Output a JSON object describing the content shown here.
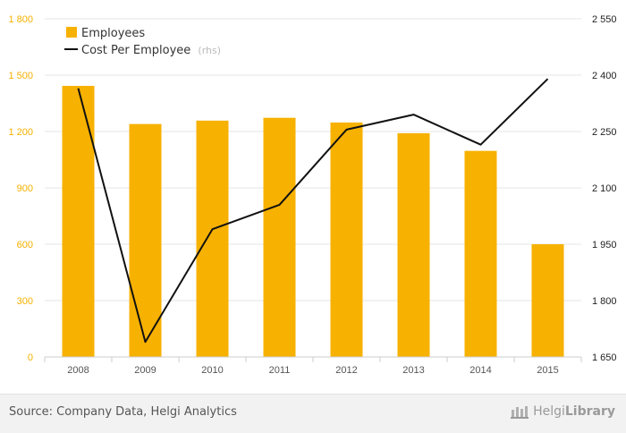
{
  "chart_data": {
    "type": "bar",
    "categories": [
      "2008",
      "2009",
      "2010",
      "2011",
      "2012",
      "2013",
      "2014",
      "2015"
    ],
    "series": [
      {
        "name": "Employees",
        "type": "bar",
        "axis": "left",
        "color": "#f7b100",
        "values": [
          1443,
          1240,
          1258,
          1273,
          1248,
          1191,
          1097,
          600
        ]
      },
      {
        "name": "Cost Per Employee",
        "legend_suffix": "(rhs)",
        "type": "line",
        "axis": "right",
        "color": "#111111",
        "values": [
          2365,
          1690,
          1990,
          2055,
          2255,
          2295,
          2215,
          2390
        ]
      }
    ],
    "y_left": {
      "min": 0,
      "max": 1800,
      "ticks": [
        "0",
        "300",
        "600",
        "900",
        "1 200",
        "1 500",
        "1 800"
      ],
      "tick_values": [
        0,
        300,
        600,
        900,
        1200,
        1500,
        1800
      ],
      "color": "#f7b100"
    },
    "y_right": {
      "min": 1650,
      "max": 2550,
      "ticks": [
        "1 650",
        "1 800",
        "1 950",
        "2 100",
        "2 250",
        "2 400",
        "2 550"
      ],
      "tick_values": [
        1650,
        1800,
        1950,
        2100,
        2250,
        2400,
        2550
      ],
      "color": "#222222"
    },
    "grid": true,
    "legend_position": "top-left"
  },
  "footer": {
    "source": "Source: Company Data, Helgi Analytics",
    "brand_light": "Helgi",
    "brand_bold": "Library"
  }
}
